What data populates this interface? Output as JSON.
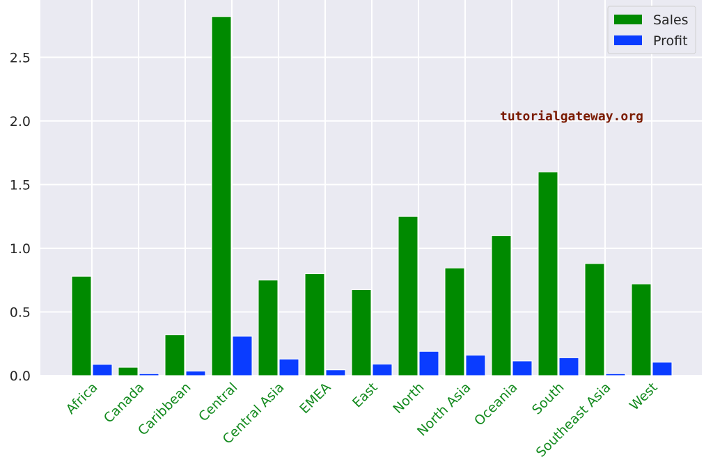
{
  "chart_data": {
    "type": "bar",
    "categories": [
      "Africa",
      "Canada",
      "Caribbean",
      "Central",
      "Central Asia",
      "EMEA",
      "East",
      "North",
      "North Asia",
      "Oceania",
      "South",
      "Southeast Asia",
      "West"
    ],
    "series": [
      {
        "name": "Sales",
        "color": "#008a00",
        "values": [
          0.78,
          0.065,
          0.32,
          2.82,
          0.75,
          0.8,
          0.675,
          1.25,
          0.845,
          1.1,
          1.6,
          0.88,
          0.72
        ]
      },
      {
        "name": "Profit",
        "color": "#0a3cff",
        "values": [
          0.088,
          0.015,
          0.035,
          0.31,
          0.13,
          0.045,
          0.09,
          0.19,
          0.16,
          0.115,
          0.14,
          0.015,
          0.105
        ]
      }
    ],
    "yticks": [
      "0.0",
      "0.5",
      "1.0",
      "1.5",
      "2.0",
      "2.5"
    ],
    "ylim": [
      0,
      2.95
    ],
    "category_label_color": "#138a1e",
    "plot_background": "#eaeaf2",
    "grid": true,
    "legend_position": "top-right",
    "watermark": "tutorialgateway.org",
    "watermark_color": "#7a1a00"
  }
}
